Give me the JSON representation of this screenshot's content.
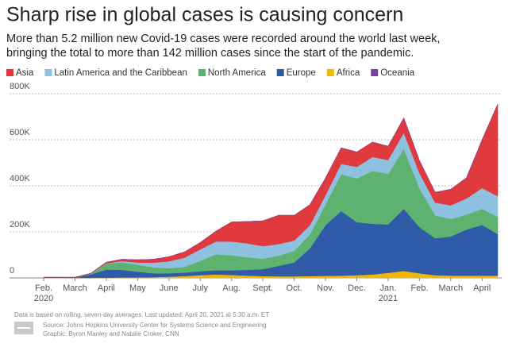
{
  "chart_data": {
    "type": "stacked_area",
    "title": "Sharp rise in global cases is causing concern",
    "subtitle": [
      "More than 5.2 million new Covid-19 cases were recorded around the world last week,",
      "bringing the total to more than 142 million cases since the start of the pandemic."
    ],
    "categories": [
      "Feb. 2020",
      null,
      "March",
      null,
      "April",
      null,
      "May",
      null,
      "June",
      null,
      "July",
      null,
      "Aug.",
      null,
      "Sept.",
      null,
      "Oct.",
      null,
      "Nov.",
      null,
      "Dec.",
      null,
      "Jan. 2021",
      null,
      "Feb.",
      null,
      "March",
      null,
      "April",
      null
    ],
    "series": [
      {
        "name": "Africa",
        "color": "#f2b705",
        "values": [
          0,
          0,
          0,
          0,
          1000,
          2000,
          2000,
          3000,
          5000,
          8000,
          12000,
          15000,
          13000,
          10000,
          8000,
          7000,
          7000,
          8000,
          9000,
          10000,
          12000,
          15000,
          22000,
          30000,
          20000,
          12000,
          10000,
          10000,
          10000,
          10000
        ]
      },
      {
        "name": "Europe",
        "color": "#2e5aa8",
        "values": [
          0,
          0,
          1000,
          15000,
          35000,
          33000,
          25000,
          17000,
          15000,
          15000,
          17000,
          18000,
          20000,
          25000,
          30000,
          45000,
          60000,
          120000,
          220000,
          280000,
          230000,
          220000,
          210000,
          270000,
          200000,
          160000,
          170000,
          200000,
          220000,
          180000
        ]
      },
      {
        "name": "North America",
        "color": "#5cb26e",
        "values": [
          0,
          0,
          0,
          3000,
          25000,
          33000,
          30000,
          26000,
          22000,
          25000,
          45000,
          70000,
          65000,
          55000,
          45000,
          45000,
          50000,
          60000,
          90000,
          160000,
          190000,
          230000,
          220000,
          260000,
          170000,
          100000,
          75000,
          65000,
          70000,
          75000
        ]
      },
      {
        "name": "Latin America and the Caribbean",
        "color": "#8ec1e0",
        "values": [
          0,
          0,
          0,
          0,
          2000,
          5000,
          10000,
          20000,
          30000,
          40000,
          50000,
          55000,
          60000,
          60000,
          55000,
          50000,
          45000,
          40000,
          40000,
          45000,
          50000,
          60000,
          60000,
          70000,
          65000,
          55000,
          60000,
          70000,
          90000,
          90000
        ]
      },
      {
        "name": "Asia",
        "color": "#e03a3e",
        "values": [
          3000,
          3000,
          2000,
          2000,
          5000,
          8000,
          12000,
          15000,
          20000,
          25000,
          30000,
          45000,
          85000,
          95000,
          110000,
          125000,
          110000,
          90000,
          75000,
          70000,
          65000,
          65000,
          60000,
          65000,
          55000,
          45000,
          70000,
          90000,
          210000,
          400000
        ]
      },
      {
        "name": "Oceania",
        "color": "#7b3fa0",
        "values": [
          0,
          0,
          0,
          0,
          0,
          0,
          0,
          0,
          0,
          0,
          0,
          0,
          0,
          0,
          0,
          0,
          0,
          0,
          0,
          0,
          0,
          0,
          0,
          0,
          0,
          0,
          0,
          0,
          0,
          0
        ]
      }
    ],
    "legend_order": [
      4,
      3,
      2,
      1,
      0,
      5
    ],
    "ylim": [
      0,
      800000
    ],
    "yticks": [
      0,
      {
        "value": 200000,
        "label": "200K"
      },
      {
        "value": 400000,
        "label": "400K"
      },
      {
        "value": 600000,
        "label": "600K"
      },
      {
        "value": 800000,
        "label": "800K"
      }
    ],
    "grid": true,
    "footnote": "Data is based on rolling, seven-day averages. Last updated: April 20, 2021 at 5:30 a.m. ET",
    "source": [
      "Source: Johns Hopkins University Center for Systems Science and Engineering",
      "Graphic: Byron Manley and Natalie Croker, CNN"
    ]
  }
}
